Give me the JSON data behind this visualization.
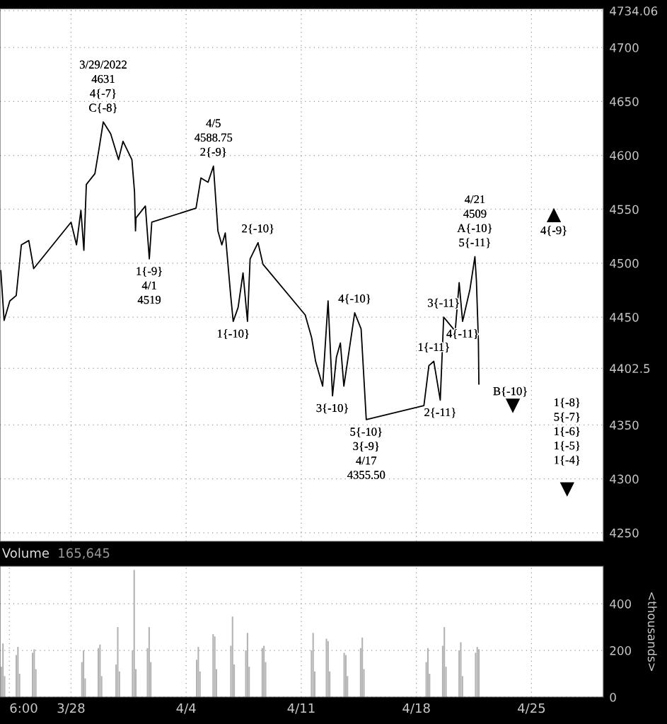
{
  "chart_data": [
    {
      "type": "line",
      "grid": true,
      "tick_labels": "y",
      "xlim": [
        "2022-03-23T16:20",
        "2022-04-29T08:50"
      ],
      "ylim": [
        4242,
        4736
      ],
      "xticks": [
        {
          "value": "2022-03-28",
          "label": null
        },
        {
          "value": "2022-04-04",
          "label": null
        },
        {
          "value": "2022-04-11",
          "label": null
        },
        {
          "value": "2022-04-18",
          "label": null
        },
        {
          "value": "2022-04-25",
          "label": null
        }
      ],
      "yticks": [
        4250,
        4300,
        4350,
        {
          "value": 4402.5,
          "label": "4402.5"
        },
        4450,
        4500,
        4550,
        4600,
        4650,
        4700,
        {
          "value": 4734.06,
          "label": "4734.06"
        }
      ],
      "x": [
        "2022-03-23T17:30",
        "2022-03-23T22:20",
        "2022-03-24T06:40",
        "2022-03-24T16:00",
        "2022-03-24T23:30",
        "2022-03-25T10:20",
        "2022-03-25T17:30",
        "2022-03-28T00:00",
        "2022-03-28T08:00",
        "2022-03-28T14:25",
        "2022-03-28T18:45",
        "2022-03-28T22:20",
        "2022-03-29T10:50",
        "2022-03-29T16:35",
        "2022-03-29T23:00",
        "2022-03-30T09:50",
        "2022-03-30T21:20",
        "2022-03-31T03:50",
        "2022-03-31T16:50",
        "2022-03-31T20:40",
        "2022-03-31T22:05",
        "2022-03-31T22:50",
        "2022-04-01T12:30",
        "2022-04-01T18:15",
        "2022-04-01T21:50",
        "2022-04-04T14:25",
        "2022-04-04T21:35",
        "2022-04-05T07:55",
        "2022-04-05T15:50",
        "2022-04-05T22:20",
        "2022-04-06T04:05",
        "2022-04-06T09:05",
        "2022-04-06T17:00",
        "2022-04-06T20:40",
        "2022-04-07T03:50",
        "2022-04-07T11:00",
        "2022-04-07T17:30",
        "2022-04-07T21:20",
        "2022-04-08T08:55",
        "2022-04-08T16:05",
        "2022-04-11T05:45",
        "2022-04-11T15:05",
        "2022-04-11T20:55",
        "2022-04-12T07:12",
        "2022-04-12T15:07",
        "2022-04-12T21:35",
        "2022-04-13T03:20",
        "2022-04-13T09:05",
        "2022-04-13T14:10",
        "2022-04-14T06:00",
        "2022-04-14T15:20",
        "2022-04-14T22:50",
        "2022-04-18T11:00",
        "2022-04-18T18:15",
        "2022-04-19T01:25",
        "2022-04-19T10:50",
        "2022-04-19T15:50",
        "2022-04-20T08:40",
        "2022-04-20T14:25",
        "2022-04-20T19:25",
        "2022-04-21T06:15",
        "2022-04-21T13:25",
        "2022-04-21T15:35",
        "2022-04-21T18:30",
        "2022-04-21T19:12"
      ],
      "series": [
        {
          "color": "#000000",
          "values": [
            4493,
            4447,
            4465,
            4470,
            4517,
            4521,
            4495,
            4538,
            4517,
            4549,
            4512,
            4573,
            4583,
            4605,
            4631,
            4620,
            4596,
            4613,
            4596,
            4566,
            4530,
            4542,
            4553,
            4504,
            4538,
            4551,
            4579,
            4575,
            4590,
            4530,
            4517,
            4528,
            4470,
            4446,
            4459,
            4491,
            4446,
            4504,
            4519,
            4499,
            4452,
            4431,
            4409,
            4386,
            4465,
            4377,
            4413,
            4426,
            4386,
            4454,
            4439,
            4355,
            4368,
            4405,
            4409,
            4373,
            4450,
            4437,
            4482,
            4446,
            4476,
            4506,
            4484,
            4428,
            4388
          ]
        }
      ],
      "annotations": [
        {
          "text": "3/29/2022\n4631\n4{-7}\nC{-8}",
          "x": "2022-03-29T23:00",
          "y": 4631
        },
        {
          "text": "4/5\n4588.75\n2{-9}",
          "x": "2022-04-05T15:50",
          "y": 4590
        },
        {
          "text": "2{-10}",
          "x": "2022-04-08T08:55",
          "y": 4519
        },
        {
          "text": "1{-9}\n4/1\n4519",
          "x": "2022-04-01T18:15",
          "y": 4504
        },
        {
          "text": "1{-10}",
          "x": "2022-04-06T20:40",
          "y": 4446
        },
        {
          "text": "4/21\n4509\nA{-10}\n5{-11}",
          "x": "2022-04-21T13:25",
          "y": 4506
        },
        {
          "text": "3{-11}",
          "x": "2022-04-19T15:50",
          "y": 4450
        },
        {
          "text": "4{-10}",
          "x": "2022-04-14T06:00",
          "y": 4454
        },
        {
          "text": "1{-11}",
          "x": "2022-04-19T01:25",
          "y": 4409
        },
        {
          "text": "4{-11}",
          "x": "2022-04-20T19:25",
          "y": 4446
        },
        {
          "text": "3{-10}",
          "x": "2022-04-12T21:35",
          "y": 4377
        },
        {
          "text": "2{-11}",
          "x": "2022-04-19T10:50",
          "y": 4373
        },
        {
          "text": "5{-10}\n3{-9}\n4/17\n4355.50",
          "x": "2022-04-14T22:50",
          "y": 4355
        },
        "4{-9}",
        "B{-10}",
        "1{-8}\n5{-7}\n1{-6}\n1{-5}\n1{-4}"
      ]
    },
    {
      "type": "bar",
      "title": "Volume",
      "subtitle": "165,645",
      "ylabel": "<thousands>",
      "grid": true,
      "xlim": [
        "2022-03-23T16:20",
        "2022-04-29T08:50"
      ],
      "ylim": [
        0,
        561
      ],
      "xticks": [
        {
          "value": "2022-03-24T06:00",
          "label": "6:00"
        },
        {
          "value": "2022-03-28",
          "label": "3/28"
        },
        {
          "value": "2022-04-04",
          "label": "4/4"
        },
        {
          "value": "2022-04-11",
          "label": "4/11"
        },
        {
          "value": "2022-04-18",
          "label": "4/18"
        },
        {
          "value": "2022-04-25",
          "label": "4/25"
        }
      ],
      "yticks": [
        0,
        200,
        400
      ],
      "x": [
        "2022-03-23T18:14",
        "2022-03-23T20:38",
        "2022-03-23T23:02",
        "2022-03-24T16:05",
        "2022-03-24T18:29",
        "2022-03-24T20:53",
        "2022-03-25T15:50",
        "2022-03-25T18:14",
        "2022-03-25T20:38",
        "2022-03-28T15:50",
        "2022-03-28T18:14",
        "2022-03-28T20:38",
        "2022-03-29T15:50",
        "2022-03-29T18:14",
        "2022-03-29T20:38",
        "2022-03-30T17:46",
        "2022-03-30T20:10",
        "2022-03-30T22:34",
        "2022-03-31T17:46",
        "2022-03-31T20:10",
        "2022-03-31T22:34",
        "2022-04-01T15:36",
        "2022-04-01T18:00",
        "2022-04-01T20:24",
        "2022-04-04T15:22",
        "2022-04-04T17:46",
        "2022-04-04T20:10",
        "2022-04-05T15:22",
        "2022-04-05T17:46",
        "2022-04-05T20:10",
        "2022-04-06T17:17",
        "2022-04-06T19:41",
        "2022-04-06T22:05",
        "2022-04-07T15:07",
        "2022-04-07T17:31",
        "2022-04-07T19:55",
        "2022-04-08T15:07",
        "2022-04-08T17:31",
        "2022-04-08T19:55",
        "2022-04-11T14:53",
        "2022-04-11T17:17",
        "2022-04-11T19:41",
        "2022-04-12T12:43",
        "2022-04-12T15:07",
        "2022-04-12T17:31",
        "2022-04-13T14:38",
        "2022-04-13T17:02",
        "2022-04-13T19:26",
        "2022-04-14T14:38",
        "2022-04-14T17:02",
        "2022-04-14T19:26",
        "2022-04-18T14:24",
        "2022-04-18T16:48",
        "2022-04-18T19:12",
        "2022-04-19T14:24",
        "2022-04-19T16:48",
        "2022-04-19T19:12",
        "2022-04-20T14:24",
        "2022-04-20T16:48",
        "2022-04-20T19:12",
        "2022-04-21T14:24",
        "2022-04-21T16:48",
        "2022-04-21T19:12"
      ],
      "series": [
        {
          "color": "#b3b3b3",
          "values": [
            130,
            230,
            90,
            180,
            215,
            100,
            190,
            205,
            120,
            150,
            200,
            80,
            210,
            225,
            90,
            140,
            300,
            110,
            200,
            545,
            120,
            210,
            300,
            150,
            160,
            215,
            110,
            270,
            260,
            120,
            220,
            345,
            140,
            200,
            275,
            130,
            210,
            220,
            150,
            200,
            275,
            110,
            250,
            240,
            110,
            190,
            180,
            90,
            210,
            255,
            120,
            150,
            210,
            100,
            220,
            300,
            130,
            200,
            235,
            90,
            190,
            215,
            205
          ]
        }
      ]
    }
  ]
}
